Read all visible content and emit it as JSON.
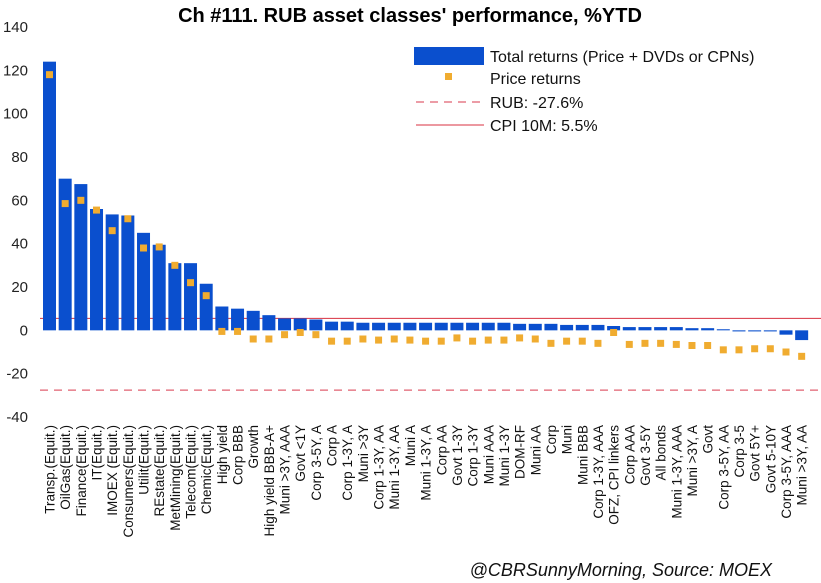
{
  "chart_data": {
    "type": "bar",
    "title": "Ch #111. RUB asset classes' performance, %YTD",
    "source": "@CBRSunnyMorning, Source: MOEX",
    "ylim": [
      -40,
      140
    ],
    "yticks": [
      -40,
      -20,
      0,
      20,
      40,
      60,
      80,
      100,
      120,
      140
    ],
    "grid": false,
    "legend_position": "top-right",
    "colors": {
      "total": "#0a4fce",
      "price": "#f0ac30",
      "rub_line": "#e06070",
      "cpi_line": "#d83040"
    },
    "categories": [
      "Transp.(Equit.)",
      "OilGas(Equit.)",
      "Finance(Equit.)",
      "IT(Equit.)",
      "IMOEX (Equit.)",
      "Consumers(Equit.)",
      "Utilit(Equit.)",
      "REstate(Equit.)",
      "MetMining(Equit.)",
      "Telecom(Equit.)",
      "Chemic(Equit.)",
      "High yield",
      "Corp BBB",
      "Growth",
      "High yield BBB-A+",
      "Muni >3Y, AAA",
      "Govt <1Y",
      "Corp 3-5Y, A",
      "Corp A",
      "Corp 1-3Y, A",
      "Muni >3Y",
      "Corp 1-3Y, AA",
      "Muni 1-3Y, AA",
      "Muni A",
      "Muni 1-3Y, A",
      "Corp AA",
      "Govt 1-3Y",
      "Corp 1-3Y",
      "Muni AAA",
      "Muni 1-3Y",
      "DOM-RF",
      "Muni AA",
      "Corp",
      "Muni",
      "Muni BBB",
      "Corp 1-3Y, AAA",
      "OFZ, CPI linkers",
      "Corp AAA",
      "Govt 3-5Y",
      "All bonds",
      "Muni 1-3Y, AAA",
      "Muni >3Y, A",
      "Govt",
      "Corp 3-5Y, AA",
      "Corp 3-5",
      "Govt 5Y+",
      "Govt 5-10Y",
      "Corp 3-5Y, AAA",
      "Muni >3Y, AA"
    ],
    "series": [
      {
        "name": "Total returns (Price + DVDs or CPNs)",
        "kind": "bar",
        "values": [
          124,
          70,
          67.5,
          56,
          53.5,
          53,
          45,
          39.5,
          31,
          31,
          21.5,
          11,
          10,
          9,
          7,
          5.5,
          5.5,
          5,
          4,
          4,
          3.5,
          3.5,
          3.5,
          3.5,
          3.5,
          3.5,
          3.5,
          3.5,
          3.5,
          3.5,
          3,
          3,
          3,
          2.5,
          2.5,
          2.5,
          2,
          1.5,
          1.5,
          1.5,
          1.5,
          1,
          1,
          0.5,
          -0.5,
          -0.5,
          -0.5,
          -2,
          -4.5
        ]
      },
      {
        "name": "Price returns",
        "kind": "marker",
        "values": [
          118,
          58.5,
          60,
          55.5,
          46,
          51.5,
          38,
          38.5,
          30,
          22,
          16,
          -0.5,
          -0.5,
          -4,
          -4,
          -2,
          -1,
          -2,
          -5,
          -5,
          -4,
          -4.5,
          -4,
          -4.5,
          -5,
          -5,
          -3.5,
          -5,
          -4.5,
          -4.5,
          -3.5,
          -4,
          -6,
          -5,
          -5,
          -6,
          -1,
          -6.5,
          -6,
          -6,
          -6.5,
          -7,
          -7,
          -9,
          -9,
          -8.5,
          -8.5,
          -10,
          -12
        ]
      }
    ],
    "reference_lines": [
      {
        "name": "RUB: -27.6%",
        "value": -27.6,
        "style": "dashed"
      },
      {
        "name": "CPI 10M: 5.5%",
        "value": 5.5,
        "style": "solid"
      }
    ]
  }
}
